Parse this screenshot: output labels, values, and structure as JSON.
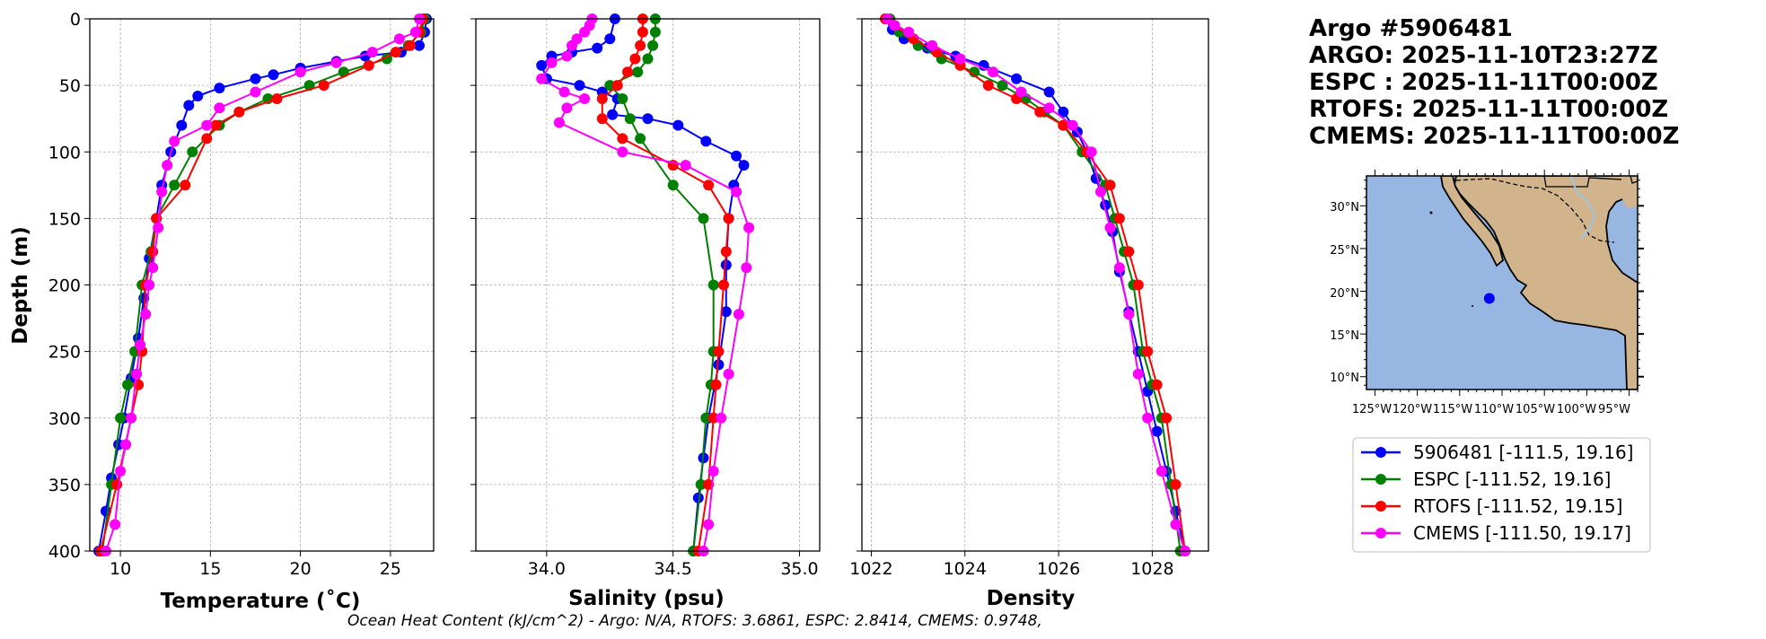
{
  "header": {
    "lines": [
      "Argo #5906481",
      "ARGO: 2025-11-10T23:27Z",
      "ESPC : 2025-11-11T00:00Z",
      "RTOFS: 2025-11-11T00:00Z",
      "CMEMS: 2025-11-11T00:00Z"
    ]
  },
  "caption": "Ocean Heat Content (kJ/cm^2) - Argo: N/A,  RTOFS: 3.6861,  ESPC: 2.8414,  CMEMS: 0.9748,",
  "colors": {
    "argo": "#0000ff",
    "espc": "#008000",
    "rtofs": "#ff0000",
    "cmems": "#ff00ff",
    "ocean": "#97b6e1",
    "land": "#d2b48c"
  },
  "legend": {
    "entries": [
      {
        "label": "5906481 [-111.5, 19.16]",
        "color": "#0000ff"
      },
      {
        "label": "ESPC [-111.52, 19.16]",
        "color": "#008000"
      },
      {
        "label": "RTOFS [-111.52, 19.15]",
        "color": "#ff0000"
      },
      {
        "label": "CMEMS [-111.50, 19.17]",
        "color": "#ff00ff"
      }
    ]
  },
  "map": {
    "lon_ticks": [
      "125°W",
      "120°W",
      "115°W",
      "110°W",
      "105°W",
      "100°W",
      "95°W"
    ],
    "lat_ticks": [
      "30°N",
      "25°N",
      "20°N",
      "15°N",
      "10°N"
    ],
    "extent": {
      "lon": [
        -126,
        -94
      ],
      "lat": [
        8.5,
        33.5
      ]
    },
    "float_position": {
      "lon": -111.5,
      "lat": 19.16
    }
  },
  "chart_data": [
    {
      "type": "line",
      "title": "",
      "xlabel": "Temperature (˚C)",
      "ylabel": "Depth (m)",
      "xlim": [
        8.3,
        27.4
      ],
      "ylim": [
        400,
        0
      ],
      "xticks": [
        "10",
        "15",
        "20",
        "25"
      ],
      "xtick_values": [
        10,
        15,
        20,
        25
      ],
      "yticks": [
        "0",
        "50",
        "100",
        "150",
        "200",
        "250",
        "300",
        "350",
        "400"
      ],
      "ytick_values": [
        0,
        50,
        100,
        150,
        200,
        250,
        300,
        350,
        400
      ],
      "grid": true,
      "series": [
        {
          "name": "5906481",
          "color": "#0000ff",
          "x": [
            27.0,
            26.9,
            26.6,
            25.6,
            23.6,
            22.0,
            20.0,
            18.5,
            17.5,
            15.5,
            14.3,
            13.8,
            13.4,
            12.8,
            12.3,
            12.0,
            11.6,
            11.3,
            11.0,
            10.6,
            10.2,
            9.9,
            9.5,
            9.2,
            8.8
          ],
          "y": [
            0,
            10,
            20,
            25,
            28,
            32,
            37,
            42,
            45,
            52,
            58,
            65,
            80,
            100,
            125,
            150,
            180,
            210,
            240,
            270,
            300,
            320,
            345,
            370,
            400
          ]
        },
        {
          "name": "ESPC",
          "color": "#008000",
          "x": [
            26.9,
            26.7,
            26.0,
            24.8,
            22.4,
            20.5,
            18.2,
            16.6,
            15.5,
            14.0,
            13.0,
            12.0,
            11.7,
            11.2,
            10.8,
            10.4,
            10.0,
            9.5,
            9.0
          ],
          "y": [
            0,
            10,
            20,
            30,
            40,
            50,
            60,
            70,
            80,
            100,
            125,
            150,
            175,
            200,
            250,
            275,
            300,
            350,
            400
          ]
        },
        {
          "name": "RTOFS",
          "color": "#ff0000",
          "x": [
            26.8,
            26.6,
            26.1,
            25.3,
            23.8,
            21.3,
            18.7,
            16.6,
            15.3,
            14.8,
            13.6,
            12.0,
            11.8,
            11.4,
            11.2,
            11.0,
            10.6,
            9.8,
            8.9
          ],
          "y": [
            0,
            10,
            20,
            25,
            35,
            50,
            60,
            70,
            80,
            90,
            125,
            150,
            175,
            200,
            250,
            275,
            300,
            350,
            400
          ]
        },
        {
          "name": "CMEMS",
          "color": "#ff00ff",
          "x": [
            26.6,
            26.4,
            25.5,
            24.0,
            22.0,
            20.0,
            17.5,
            15.5,
            14.8,
            13.0,
            12.6,
            12.3,
            12.1,
            11.8,
            11.6,
            11.4,
            11.1,
            10.9,
            10.6,
            10.3,
            10.0,
            9.7,
            9.2
          ],
          "y": [
            0,
            10,
            15,
            25,
            33,
            40,
            55,
            67,
            80,
            92,
            110,
            130,
            157,
            187,
            200,
            222,
            245,
            267,
            300,
            320,
            340,
            380,
            400
          ]
        }
      ]
    },
    {
      "type": "line",
      "title": "",
      "xlabel": "Salinity (psu)",
      "ylabel": "",
      "xlim": [
        33.72,
        35.08
      ],
      "ylim": [
        400,
        0
      ],
      "xticks": [
        "34.0",
        "34.5",
        "35.0"
      ],
      "xtick_values": [
        34.0,
        34.5,
        35.0
      ],
      "yticks": [],
      "grid": true,
      "series": [
        {
          "name": "5906481",
          "color": "#0000ff",
          "x": [
            34.27,
            34.25,
            34.2,
            34.1,
            34.02,
            33.98,
            34.0,
            34.13,
            34.22,
            34.28,
            34.26,
            34.4,
            34.52,
            34.63,
            34.75,
            34.78,
            34.74,
            34.72,
            34.71,
            34.71,
            34.68,
            34.64,
            34.62,
            34.6,
            34.58
          ],
          "y": [
            0,
            15,
            22,
            25,
            28,
            35,
            45,
            50,
            55,
            60,
            72,
            75,
            80,
            92,
            103,
            110,
            125,
            150,
            185,
            220,
            260,
            300,
            330,
            360,
            400
          ]
        },
        {
          "name": "ESPC",
          "color": "#008000",
          "x": [
            34.43,
            34.43,
            34.42,
            34.4,
            34.36,
            34.25,
            34.3,
            34.33,
            34.37,
            34.5,
            34.62,
            34.66,
            34.66,
            34.65,
            34.63,
            34.61,
            34.58
          ],
          "y": [
            0,
            10,
            20,
            30,
            40,
            50,
            60,
            75,
            90,
            125,
            150,
            200,
            250,
            275,
            300,
            350,
            400
          ]
        },
        {
          "name": "RTOFS",
          "color": "#ff0000",
          "x": [
            34.38,
            34.38,
            34.37,
            34.35,
            34.32,
            34.28,
            34.22,
            34.22,
            34.3,
            34.5,
            34.64,
            34.72,
            34.71,
            34.7,
            34.68,
            34.67,
            34.66,
            34.64,
            34.6
          ],
          "y": [
            0,
            10,
            20,
            30,
            40,
            50,
            60,
            75,
            90,
            110,
            125,
            150,
            175,
            200,
            250,
            275,
            300,
            350,
            400
          ]
        },
        {
          "name": "CMEMS",
          "color": "#ff00ff",
          "x": [
            34.18,
            34.17,
            34.15,
            34.12,
            34.1,
            34.08,
            34.02,
            33.98,
            34.07,
            34.15,
            34.08,
            34.05,
            34.3,
            34.55,
            34.75,
            34.8,
            34.79,
            34.76,
            34.72,
            34.69,
            34.66,
            34.64,
            34.62
          ],
          "y": [
            0,
            5,
            10,
            15,
            20,
            28,
            33,
            45,
            55,
            60,
            67,
            78,
            100,
            110,
            130,
            157,
            187,
            222,
            267,
            300,
            340,
            380,
            400
          ]
        }
      ]
    },
    {
      "type": "line",
      "title": "",
      "xlabel": "Density",
      "ylabel": "",
      "xlim": [
        1021.8,
        1029.2
      ],
      "ylim": [
        400,
        0
      ],
      "xticks": [
        "1022",
        "1024",
        "1026",
        "1028"
      ],
      "xtick_values": [
        1022,
        1024,
        1026,
        1028
      ],
      "yticks": [],
      "grid": true,
      "series": [
        {
          "name": "5906481",
          "color": "#0000ff",
          "x": [
            1022.3,
            1022.45,
            1022.7,
            1023.2,
            1023.8,
            1024.4,
            1025.1,
            1025.8,
            1026.1,
            1026.4,
            1026.6,
            1026.8,
            1027.0,
            1027.15,
            1027.3,
            1027.5,
            1027.7,
            1027.9,
            1028.1,
            1028.3,
            1028.5,
            1028.7
          ],
          "y": [
            0,
            8,
            15,
            22,
            28,
            35,
            45,
            55,
            70,
            85,
            100,
            120,
            140,
            160,
            190,
            220,
            250,
            280,
            310,
            340,
            370,
            400
          ]
        },
        {
          "name": "ESPC",
          "color": "#008000",
          "x": [
            1022.4,
            1022.6,
            1023.0,
            1023.5,
            1024.2,
            1024.8,
            1025.3,
            1025.7,
            1026.1,
            1026.5,
            1027.0,
            1027.2,
            1027.4,
            1027.6,
            1027.8,
            1028.0,
            1028.2,
            1028.4,
            1028.6
          ],
          "y": [
            0,
            10,
            20,
            30,
            40,
            50,
            60,
            70,
            80,
            100,
            125,
            150,
            175,
            200,
            250,
            275,
            300,
            350,
            400
          ]
        },
        {
          "name": "RTOFS",
          "color": "#ff0000",
          "x": [
            1022.3,
            1022.5,
            1022.9,
            1023.4,
            1023.9,
            1024.5,
            1025.1,
            1025.6,
            1026.1,
            1026.6,
            1027.1,
            1027.3,
            1027.5,
            1027.7,
            1027.9,
            1028.1,
            1028.3,
            1028.5,
            1028.7
          ],
          "y": [
            0,
            5,
            15,
            25,
            35,
            50,
            60,
            70,
            80,
            100,
            125,
            150,
            175,
            200,
            250,
            275,
            300,
            350,
            400
          ]
        },
        {
          "name": "CMEMS",
          "color": "#ff00ff",
          "x": [
            1022.35,
            1022.5,
            1022.8,
            1023.3,
            1023.9,
            1024.6,
            1025.2,
            1025.8,
            1026.3,
            1026.7,
            1026.9,
            1027.1,
            1027.3,
            1027.5,
            1027.7,
            1027.9,
            1028.2,
            1028.5,
            1028.7
          ],
          "y": [
            0,
            5,
            10,
            20,
            30,
            40,
            55,
            67,
            80,
            100,
            130,
            157,
            187,
            222,
            267,
            300,
            340,
            380,
            400
          ]
        }
      ]
    }
  ]
}
